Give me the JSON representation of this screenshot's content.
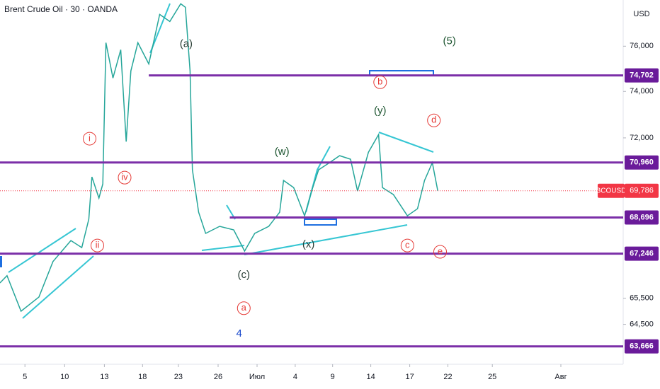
{
  "chart_data": {
    "type": "line",
    "title": "Brent Crude Oil · 30 · OANDA",
    "currency": "USD",
    "symbol": "BCOUSD",
    "log_scale": true,
    "xlim": [
      0,
      80
    ],
    "ylim": [
      63000,
      78100
    ],
    "xticks": [
      {
        "value": 3.2,
        "label": "5"
      },
      {
        "value": 8.3,
        "label": "10"
      },
      {
        "value": 13.4,
        "label": "13"
      },
      {
        "value": 18.3,
        "label": "18"
      },
      {
        "value": 22.9,
        "label": "23"
      },
      {
        "value": 28,
        "label": "26"
      },
      {
        "value": 33,
        "label": "Июл"
      },
      {
        "value": 37.9,
        "label": "4"
      },
      {
        "value": 42.7,
        "label": "9"
      },
      {
        "value": 47.6,
        "label": "14"
      },
      {
        "value": 52.6,
        "label": "17"
      },
      {
        "value": 57.5,
        "label": "22"
      },
      {
        "value": 63.2,
        "label": "25"
      },
      {
        "value": 72,
        "label": "Авг"
      }
    ],
    "yticks": [
      {
        "value": 76000,
        "label": "76,000"
      },
      {
        "value": 74000,
        "label": "74,000"
      },
      {
        "value": 72000,
        "label": "72,000"
      },
      {
        "value": 65500,
        "label": "65,500"
      },
      {
        "value": 64500,
        "label": "64,500"
      }
    ],
    "series": [
      {
        "name": "BCOUSD",
        "color": "#26a69a",
        "x": [
          0,
          0.9,
          2.7,
          5,
          6.8,
          9.1,
          10.5,
          11.4,
          11.8,
          12.7,
          13.2,
          13.6,
          14.5,
          15.5,
          16.2,
          16.8,
          17.7,
          19.1,
          20.5,
          21.8,
          23.2,
          23.8,
          24.4,
          24.7,
          25.5,
          26.4,
          28.2,
          30,
          31.4,
          32.7,
          34.5,
          35.9,
          36.4,
          37.7,
          39.1,
          40,
          40.9,
          42.3,
          43.6,
          45,
          45.9,
          47.3,
          48.6,
          49.1,
          50.5,
          52.3,
          53.6,
          54.5,
          55.5,
          56.2
        ],
        "values": [
          66097,
          66380,
          65003,
          65550,
          66933,
          67770,
          67488,
          68628,
          70361,
          69487,
          70072,
          76158,
          74587,
          75842,
          71843,
          74900,
          76158,
          75210,
          77438,
          77117,
          77924,
          77764,
          74900,
          70657,
          68908,
          68056,
          68339,
          68196,
          67348,
          68056,
          68339,
          68908,
          70215,
          69921,
          68767,
          69774,
          70657,
          70953,
          71249,
          71098,
          69774,
          71393,
          72140,
          69921,
          69631,
          68767,
          69054,
          70215,
          70953,
          69786
        ]
      }
    ],
    "levels": [
      {
        "value": 74702,
        "label": "74,702",
        "from": 19.1
      },
      {
        "value": 70960,
        "label": "70,960",
        "from": 0
      },
      {
        "value": 68696,
        "label": "68,696",
        "from": 29.5
      },
      {
        "value": 67246,
        "label": "67,246",
        "from": 0
      },
      {
        "value": 63666,
        "label": "63,666",
        "from": 0
      }
    ],
    "last_price": {
      "value": 69786,
      "label": "69,786"
    },
    "annotations": [
      {
        "text": "(5)",
        "x": 57.7,
        "y": 76221,
        "color": "#1e5631",
        "circled": false
      },
      {
        "text": "(a)",
        "x": 23.9,
        "y": 76095,
        "color": "#2a3f36",
        "circled": false
      },
      {
        "text": "(w)",
        "x": 36.2,
        "y": 71393,
        "color": "#1e5631",
        "circled": false
      },
      {
        "text": "(y)",
        "x": 48.8,
        "y": 73141,
        "color": "#1e5631",
        "circled": false
      },
      {
        "text": "(x)",
        "x": 39.6,
        "y": 67599,
        "color": "#2a3f36",
        "circled": false
      },
      {
        "text": "(c)",
        "x": 31.3,
        "y": 66400,
        "color": "#2a3f36",
        "circled": false
      },
      {
        "text": "4",
        "x": 30.7,
        "y": 64145,
        "color": "#1848cc",
        "circled": false
      },
      {
        "text": "i",
        "x": 11.5,
        "y": 71966,
        "color": "#e53935",
        "circled": true
      },
      {
        "text": "iv",
        "x": 16,
        "y": 70331,
        "color": "#e53935",
        "circled": true
      },
      {
        "text": "ii",
        "x": 12.5,
        "y": 67571,
        "color": "#e53935",
        "circled": true
      },
      {
        "text": "b",
        "x": 48.8,
        "y": 74402,
        "color": "#e53935",
        "circled": true
      },
      {
        "text": "d",
        "x": 55.7,
        "y": 72746,
        "color": "#e53935",
        "circled": true
      },
      {
        "text": "c",
        "x": 52.3,
        "y": 67571,
        "color": "#e53935",
        "circled": true
      },
      {
        "text": "e",
        "x": 56.5,
        "y": 67321,
        "color": "#e53935",
        "circled": true
      },
      {
        "text": "a",
        "x": 31.3,
        "y": 65117,
        "color": "#e53935",
        "circled": true
      }
    ]
  }
}
